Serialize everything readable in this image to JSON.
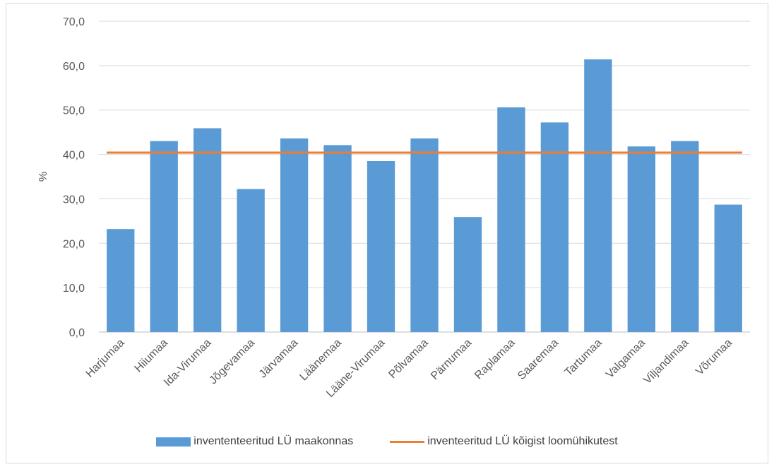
{
  "chart_data": {
    "type": "bar",
    "title": "",
    "xlabel": "",
    "ylabel": "%",
    "ylim": [
      0,
      70
    ],
    "yticks": [
      "0,0",
      "10,0",
      "20,0",
      "30,0",
      "40,0",
      "50,0",
      "60,0",
      "70,0"
    ],
    "grid": true,
    "legend_position": "bottom",
    "categories": [
      "Harjumaa",
      "Hiiumaa",
      "Ida-Virumaa",
      "Jõgevamaa",
      "Järvamaa",
      "Läänemaa",
      "Lääne-Virumaa",
      "Põlvamaa",
      "Pärnumaa",
      "Raplamaa",
      "Saaremaa",
      "Tartumaa",
      "Valgamaa",
      "Viljandimaa",
      "Võrumaa"
    ],
    "series": [
      {
        "name": "inveneteeritud LÜ maakonnas",
        "kind": "bar",
        "color": "#5b9bd5",
        "values": [
          23.2,
          43.0,
          45.9,
          32.2,
          43.6,
          42.1,
          38.5,
          43.6,
          25.9,
          50.6,
          47.2,
          61.4,
          41.8,
          43.0,
          28.7
        ]
      },
      {
        "name": "inventeeritud LÜ kõigist loomühikutest",
        "kind": "line",
        "color": "#ed7d31",
        "values": [
          40.4,
          40.4,
          40.4,
          40.4,
          40.4,
          40.4,
          40.4,
          40.4,
          40.4,
          40.4,
          40.4,
          40.4,
          40.4,
          40.4,
          40.4
        ]
      }
    ]
  },
  "legend": {
    "bar_label": "invententeeritud LÜ maakonnas",
    "line_label": "inventeeritud LÜ kõigist loomühikutest"
  }
}
